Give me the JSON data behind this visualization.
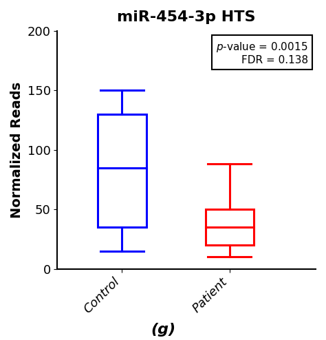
{
  "title": "miR-454-3p HTS",
  "ylabel": "Normalized Reads",
  "xlabel_label": "(g)",
  "categories": [
    "Control",
    "Patient"
  ],
  "control": {
    "whisker_low": 15,
    "q1": 35,
    "median": 85,
    "q3": 130,
    "whisker_high": 150,
    "color": "#0000FF"
  },
  "patient": {
    "whisker_low": 10,
    "q1": 20,
    "median": 35,
    "q3": 50,
    "whisker_high": 88,
    "color": "#FF0000"
  },
  "ylim": [
    0,
    200
  ],
  "yticks": [
    0,
    50,
    100,
    150,
    200
  ],
  "box_width": 0.45,
  "linewidth": 2.2,
  "bg_color": "#ffffff",
  "title_fontsize": 16,
  "tick_fontsize": 13,
  "ylabel_fontsize": 14,
  "xlabel_bottom_fontsize": 16,
  "annot_fontsize": 11
}
